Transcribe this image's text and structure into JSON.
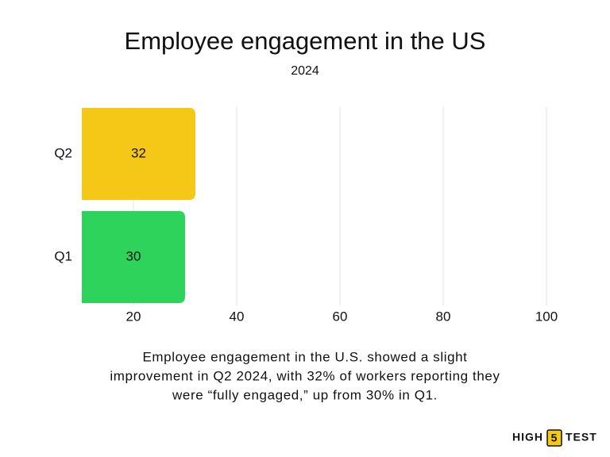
{
  "chart_data": {
    "type": "barh",
    "title": "Employee engagement in the US",
    "subtitle": "2024",
    "categories": [
      "Q2",
      "Q1"
    ],
    "values": [
      32,
      30
    ],
    "colors": [
      "#f5c817",
      "#2ed35b"
    ],
    "xlim": [
      10,
      100
    ],
    "xticks": [
      20,
      40,
      60,
      80,
      100
    ],
    "grid": true,
    "caption": [
      "Employee engagement in the U.S. showed a slight",
      "improvement in Q2 2024, with 32% of workers reporting they",
      "were “fully engaged,” up from 30% in Q1."
    ]
  },
  "logo": {
    "left": "HIGH",
    "mid": "5",
    "right": "TEST"
  }
}
